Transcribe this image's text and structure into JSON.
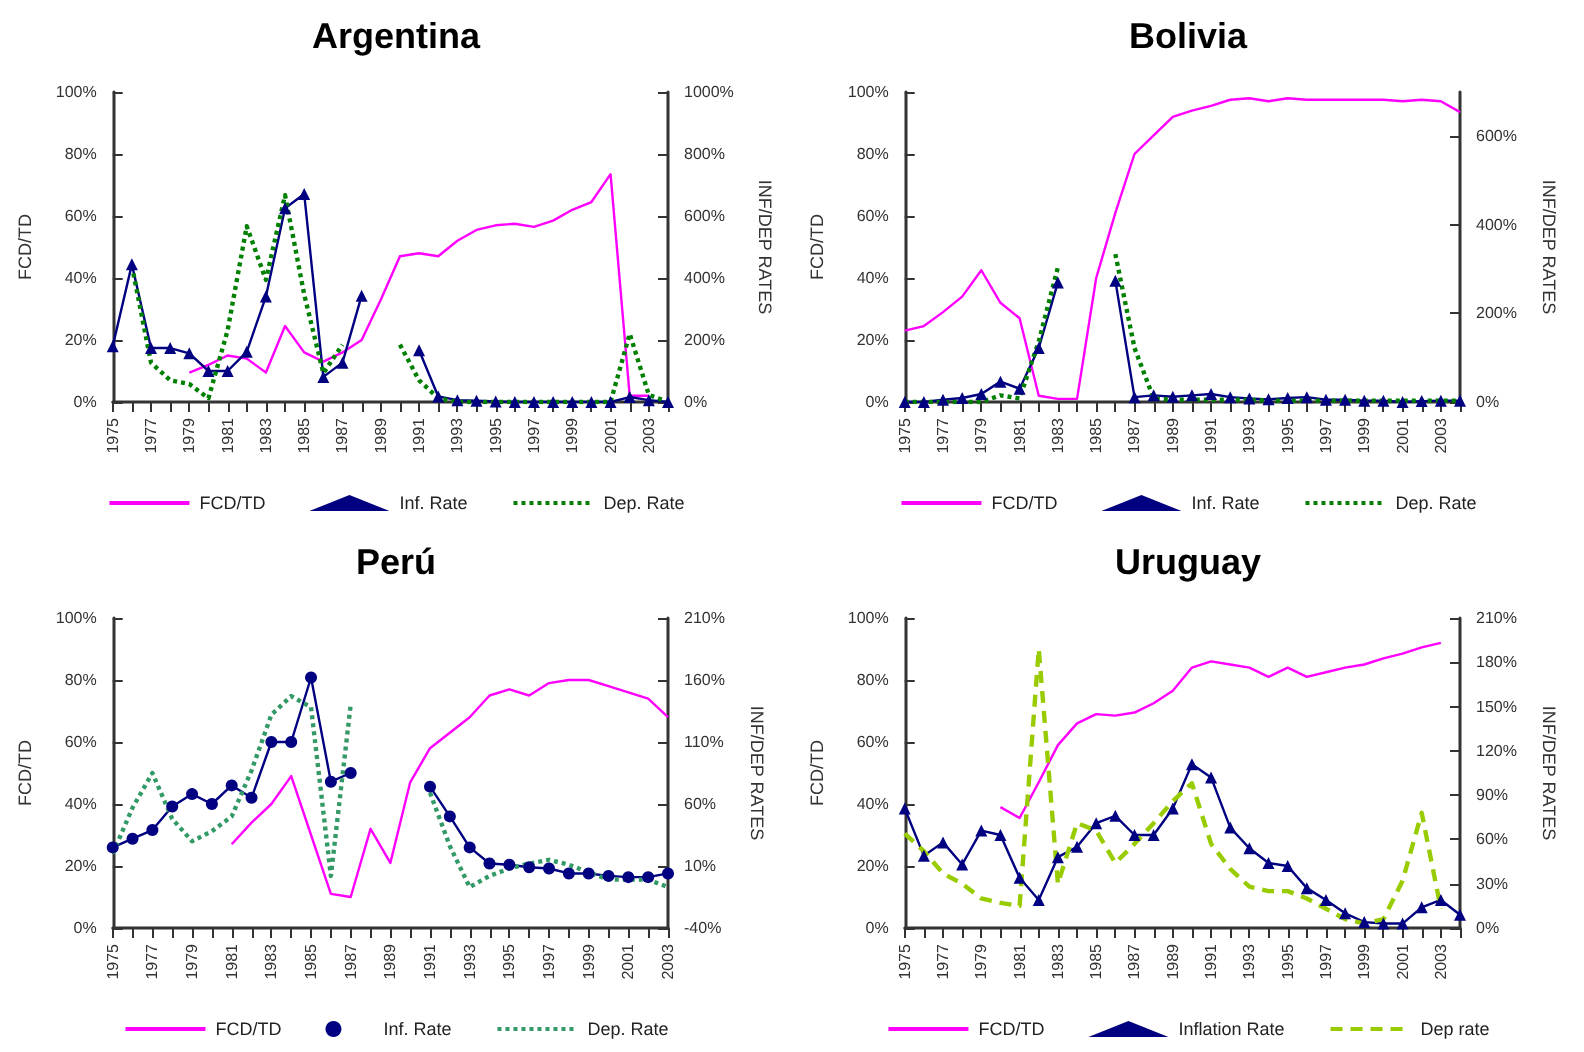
{
  "chart_data": [
    {
      "type": "line",
      "title": "Argentina",
      "ylabel": "FCD/TD",
      "y2label": "INF/DEP RATES",
      "legend": "bottom",
      "categories": [
        "1975",
        null,
        "1977",
        null,
        "1979",
        null,
        "1981",
        null,
        "1983",
        null,
        "1985",
        null,
        "1987",
        null,
        "1989",
        null,
        "1991",
        null,
        "1993",
        null,
        "1995",
        null,
        "1997",
        null,
        "1999",
        null,
        "2001",
        null,
        "2003",
        null
      ],
      "ylim": [
        0,
        100
      ],
      "yticks": [
        {
          "value": 0,
          "label": "0%"
        },
        {
          "value": 20,
          "label": "20%"
        },
        {
          "value": 40,
          "label": "40%"
        },
        {
          "value": 60,
          "label": "60%"
        },
        {
          "value": 80,
          "label": "80%"
        },
        {
          "value": 100,
          "label": "100%"
        }
      ],
      "y2lim": [
        0,
        1000
      ],
      "y2ticks": [
        {
          "value": 0,
          "label": "0%"
        },
        {
          "value": 200,
          "label": "200%"
        },
        {
          "value": 400,
          "label": "400%"
        },
        {
          "value": 600,
          "label": "600%"
        },
        {
          "value": 800,
          "label": "800%"
        },
        {
          "value": 1000,
          "label": "1000%"
        }
      ],
      "series": [
        {
          "name": "FCD/TD",
          "color": "#ff00ff",
          "marker": "none",
          "line_style": "solid",
          "values": [
            null,
            null,
            null,
            null,
            9.5,
            12,
            15,
            14,
            9.5,
            24.5,
            16,
            13,
            16,
            20,
            33,
            47,
            48,
            47,
            52,
            55.5,
            57,
            57.5,
            56.5,
            58.5,
            62,
            64.5,
            73.5,
            2,
            2,
            null
          ]
        },
        {
          "name": "Inf. Rate",
          "color": "#000080",
          "axis": "y2",
          "marker": "triangle",
          "line_style": "solid",
          "values": [
            180,
            444,
            174,
            174,
            157,
            100,
            100,
            162,
            340,
            625,
            671,
            81,
            127,
            343,
            null,
            null,
            167,
            18,
            6,
            4,
            2,
            0,
            0,
            0,
            0,
            0,
            0,
            16,
            6,
            0
          ]
        },
        {
          "name": "Dep. Rate",
          "color": "#008000",
          "axis": "y2",
          "marker": "none",
          "line_style": "dotted",
          "values": [
            null,
            440,
            127,
            70,
            58,
            12,
            231,
            567,
            394,
            667,
            347,
            93,
            185,
            null,
            null,
            185,
            70,
            12,
            0,
            0,
            0,
            0,
            0,
            0,
            0,
            0,
            0,
            220,
            23,
            0
          ]
        }
      ]
    },
    {
      "type": "line",
      "title": "Bolivia",
      "ylabel": "FCD/TD",
      "y2label": "INF/DEP RATES",
      "legend": "bottom",
      "categories": [
        "1975",
        null,
        "1977",
        null,
        "1979",
        null,
        "1981",
        null,
        "1983",
        null,
        "1985",
        null,
        "1987",
        null,
        "1989",
        null,
        "1991",
        null,
        "1993",
        null,
        "1995",
        null,
        "1997",
        null,
        "1999",
        null,
        "2001",
        null,
        "2003",
        null
      ],
      "ylim": [
        0,
        100
      ],
      "yticks": [
        {
          "value": 0,
          "label": "0%"
        },
        {
          "value": 20,
          "label": "20%"
        },
        {
          "value": 40,
          "label": "40%"
        },
        {
          "value": 60,
          "label": "60%"
        },
        {
          "value": 80,
          "label": "80%"
        },
        {
          "value": 100,
          "label": "100%"
        }
      ],
      "y2lim": [
        0,
        700
      ],
      "y2ticks": [
        {
          "value": 0,
          "label": "0%"
        },
        {
          "value": 200,
          "label": "200%"
        },
        {
          "value": 400,
          "label": "400%"
        },
        {
          "value": 600,
          "label": "600%"
        }
      ],
      "series": [
        {
          "name": "FCD/TD",
          "color": "#ff00ff",
          "marker": "none",
          "line_style": "solid",
          "values": [
            23,
            24.5,
            29,
            34,
            42.5,
            32,
            27,
            2,
            1,
            1,
            40,
            61,
            80,
            86,
            92,
            94,
            95.5,
            97.5,
            98,
            97,
            98,
            97.5,
            97.5,
            97.5,
            97.5,
            97.5,
            97,
            97.5,
            97,
            93.5
          ]
        },
        {
          "name": "Inf. Rate",
          "color": "#000080",
          "axis": "y2",
          "marker": "triangle",
          "line_style": "solid",
          "values": [
            0,
            0,
            5,
            9,
            18,
            46,
            30,
            122,
            270,
            null,
            null,
            274,
            11,
            15,
            12,
            15,
            18,
            11,
            8,
            6,
            9,
            11,
            5,
            5,
            3,
            3,
            0,
            2,
            3,
            3
          ]
        },
        {
          "name": "Dep. Rate",
          "color": "#008000",
          "axis": "y2",
          "marker": "none",
          "line_style": "dotted",
          "values": [
            0,
            0,
            0,
            0,
            0,
            15,
            8,
            137,
            304,
            null,
            null,
            334,
            122,
            8,
            5,
            5,
            5,
            5,
            5,
            3,
            3,
            3,
            3,
            3,
            3,
            3,
            3,
            3,
            3,
            3
          ]
        }
      ]
    },
    {
      "type": "line",
      "title": "Perú",
      "ylabel": "FCD/TD",
      "y2label": "INF/DEP RATES",
      "legend": "bottom",
      "categories": [
        "1975",
        null,
        "1977",
        null,
        "1979",
        null,
        "1981",
        null,
        "1983",
        null,
        "1985",
        null,
        "1987",
        null,
        "1989",
        null,
        "1991",
        null,
        "1993",
        null,
        "1995",
        null,
        "1997",
        null,
        "1999",
        null,
        "2001",
        null,
        "2003"
      ],
      "ylim": [
        0,
        100
      ],
      "yticks": [
        {
          "value": 0,
          "label": "0%"
        },
        {
          "value": 20,
          "label": "20%"
        },
        {
          "value": 40,
          "label": "40%"
        },
        {
          "value": 60,
          "label": "60%"
        },
        {
          "value": 80,
          "label": "80%"
        },
        {
          "value": 100,
          "label": "100%"
        }
      ],
      "y2lim": [
        -40,
        210
      ],
      "y2ticks": [
        {
          "value": -40,
          "label": "-40%"
        },
        {
          "value": 10,
          "label": "10%"
        },
        {
          "value": 60,
          "label": "60%"
        },
        {
          "value": 110,
          "label": "110%"
        },
        {
          "value": 160,
          "label": "160%"
        },
        {
          "value": 210,
          "label": "210%"
        }
      ],
      "series": [
        {
          "name": "FCD/TD",
          "color": "#ff00ff",
          "marker": "none",
          "line_style": "solid",
          "values": [
            null,
            null,
            null,
            null,
            null,
            null,
            27,
            34,
            40,
            49,
            30,
            11,
            10,
            32,
            21,
            47,
            58,
            63,
            68,
            75,
            77,
            75,
            79,
            80,
            80,
            78,
            76,
            74,
            68
          ]
        },
        {
          "name": "Inf. Rate",
          "color": "#000080",
          "axis": "y2",
          "marker": "circle",
          "line_style": "solid",
          "values": [
            25,
            32,
            39,
            58,
            68,
            60,
            75,
            65,
            110,
            110,
            162,
            78,
            85,
            null,
            null,
            null,
            74,
            50,
            25,
            12,
            11,
            9,
            8,
            4,
            4,
            2,
            1,
            1,
            4
          ]
        },
        {
          "name": "Dep. Rate",
          "color": "#339966",
          "axis": "y2",
          "marker": "none",
          "line_style": "dotted",
          "values": [
            20,
            57,
            85,
            48,
            30,
            38,
            50,
            87,
            132,
            147,
            138,
            2,
            140,
            null,
            null,
            null,
            69,
            26,
            -7,
            2,
            8,
            12,
            15,
            11,
            5,
            -1,
            -1,
            -1,
            -7
          ]
        }
      ]
    },
    {
      "type": "line",
      "title": "Uruguay",
      "ylabel": "FCD/TD",
      "y2label": "INF/DEP RATES",
      "legend": "bottom",
      "categories": [
        "1975",
        null,
        "1977",
        null,
        "1979",
        null,
        "1981",
        null,
        "1983",
        null,
        "1985",
        null,
        "1987",
        null,
        "1989",
        null,
        "1991",
        null,
        "1993",
        null,
        "1995",
        null,
        "1997",
        null,
        "1999",
        null,
        "2001",
        null,
        "2003",
        null
      ],
      "ylim": [
        0,
        100
      ],
      "yticks": [
        {
          "value": 0,
          "label": "0%"
        },
        {
          "value": 20,
          "label": "20%"
        },
        {
          "value": 40,
          "label": "40%"
        },
        {
          "value": 60,
          "label": "60%"
        },
        {
          "value": 80,
          "label": "80%"
        },
        {
          "value": 100,
          "label": "100%"
        }
      ],
      "y2lim": [
        0,
        210
      ],
      "y2ticks": [
        {
          "value": 0,
          "label": "0%"
        },
        {
          "value": 30,
          "label": "30%"
        },
        {
          "value": 60,
          "label": "60%"
        },
        {
          "value": 90,
          "label": "90%"
        },
        {
          "value": 120,
          "label": "120%"
        },
        {
          "value": 150,
          "label": "150%"
        },
        {
          "value": 180,
          "label": "180%"
        },
        {
          "value": 210,
          "label": "210%"
        }
      ],
      "series": [
        {
          "name": "FCD/TD",
          "color": "#ff00ff",
          "marker": "none",
          "line_style": "solid",
          "values": [
            null,
            null,
            null,
            null,
            null,
            39,
            35.5,
            47,
            59,
            66,
            69,
            68.5,
            69.5,
            72.5,
            76.5,
            84,
            86,
            85,
            84,
            81,
            84,
            81,
            82.5,
            84,
            85,
            87,
            88.5,
            90.5,
            92,
            null
          ]
        },
        {
          "name": "Inflation Rate",
          "color": "#000080",
          "axis": "y2",
          "marker": "triangle",
          "line_style": "solid",
          "values": [
            81,
            49,
            58,
            43,
            66,
            63,
            34,
            19,
            48,
            55,
            71,
            76,
            63,
            63,
            81,
            111,
            102,
            68,
            54,
            44,
            42,
            27,
            19,
            10,
            4,
            3,
            3,
            14,
            19,
            9
          ]
        },
        {
          "name": "Dep rate",
          "color": "#99cc00",
          "axis": "y2",
          "marker": "none",
          "line_style": "dashed",
          "values": [
            64,
            52,
            37,
            30,
            20,
            17,
            15,
            189,
            30,
            71,
            66,
            44,
            57,
            71,
            86,
            98,
            57,
            40,
            28,
            25,
            25,
            20,
            13,
            6,
            3,
            6,
            32,
            78,
            13,
            null
          ]
        }
      ]
    }
  ]
}
